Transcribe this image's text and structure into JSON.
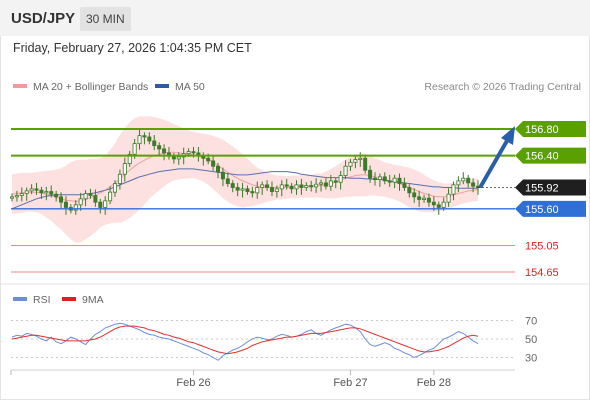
{
  "header": {
    "pair": "USD/JPY",
    "timeframe": "30 MIN"
  },
  "datetime": "Friday, February 27, 2026 1:04:35 PM CET",
  "legend": {
    "bollinger_label": "MA 20 + Bollinger Bands",
    "ma50_label": "MA 50",
    "rsi_label": "RSI",
    "rsi_ma_label": "9MA",
    "copyright": "Research © 2026 Trading Central"
  },
  "colors": {
    "green_level": "#5aa000",
    "blue_level": "#2f6fd6",
    "red_level": "#e02020",
    "last_price": "#1f1f1f",
    "candle": "#3d7a2a",
    "ma20": "#f0a0a0",
    "band": "#fde0e0",
    "ma50": "#5a6fae",
    "rsi": "#6b8fdd",
    "rsi_ma": "#e03030",
    "arrow": "#2a5ea8"
  },
  "chart_data": [
    {
      "type": "candlestick",
      "levels": [
        {
          "value": 156.8,
          "label": "156.80",
          "style": "green"
        },
        {
          "value": 156.4,
          "label": "156.40",
          "style": "green"
        },
        {
          "value": 155.92,
          "label": "155.92",
          "style": "last"
        },
        {
          "value": 155.6,
          "label": "155.60",
          "style": "blue"
        },
        {
          "value": 155.05,
          "label": "155.05",
          "style": "red"
        },
        {
          "value": 154.65,
          "label": "154.65",
          "style": "red"
        }
      ],
      "ylim": [
        154.5,
        157.2
      ],
      "x_ticks": [
        "Feb 26",
        "Feb 27",
        "Feb 28"
      ],
      "x_tick_pos": [
        37,
        69,
        86
      ],
      "n_bars": 96,
      "closes": [
        155.78,
        155.8,
        155.83,
        155.87,
        155.9,
        155.88,
        155.84,
        155.86,
        155.82,
        155.78,
        155.7,
        155.62,
        155.58,
        155.66,
        155.75,
        155.83,
        155.8,
        155.7,
        155.62,
        155.72,
        155.85,
        155.98,
        156.12,
        156.28,
        156.42,
        156.58,
        156.7,
        156.68,
        156.62,
        156.55,
        156.5,
        156.44,
        156.39,
        156.35,
        156.38,
        156.43,
        156.46,
        156.44,
        156.4,
        156.36,
        156.32,
        156.24,
        156.15,
        156.05,
        155.98,
        155.92,
        155.88,
        155.9,
        155.86,
        155.84,
        155.92,
        155.96,
        155.92,
        155.86,
        155.9,
        155.96,
        155.94,
        155.9,
        155.96,
        155.92,
        155.95,
        155.93,
        155.97,
        155.99,
        155.94,
        156.02,
        156.0,
        156.1,
        156.24,
        156.3,
        156.34,
        156.36,
        156.18,
        156.06,
        156.04,
        156.08,
        156.02,
        156.0,
        156.06,
        155.98,
        155.92,
        155.84,
        155.78,
        155.74,
        155.76,
        155.7,
        155.66,
        155.62,
        155.7,
        155.82,
        155.96,
        156.02,
        156.06,
        155.99,
        155.94,
        155.92
      ],
      "ma20": [
        155.82,
        155.83,
        155.84,
        155.85,
        155.85,
        155.85,
        155.84,
        155.82,
        155.8,
        155.77,
        155.75,
        155.73,
        155.72,
        155.71,
        155.72,
        155.74,
        155.77,
        155.8,
        155.84,
        155.88,
        155.93,
        155.99,
        156.05,
        156.12,
        156.18,
        156.24,
        156.29,
        156.33,
        156.37,
        156.4,
        156.42,
        156.44,
        156.45,
        156.45,
        156.44,
        156.43,
        156.42,
        156.41,
        156.39,
        156.37,
        156.34,
        156.3,
        156.25,
        156.2,
        156.15,
        156.1,
        156.06,
        156.02,
        155.99,
        155.96,
        155.94,
        155.93,
        155.93,
        155.92,
        155.92,
        155.92,
        155.92,
        155.93,
        155.93,
        155.94,
        155.94,
        155.94,
        155.95,
        155.95,
        155.96,
        155.98,
        156.0,
        156.03,
        156.06,
        156.08,
        156.1,
        156.11,
        156.11,
        156.1,
        156.08,
        156.06,
        156.04,
        156.02,
        156.0,
        155.98,
        155.95,
        155.92,
        155.89,
        155.86,
        155.83,
        155.81,
        155.79,
        155.78,
        155.78,
        155.79,
        155.81,
        155.83,
        155.85,
        155.87,
        155.88,
        155.89
      ],
      "ma50": [
        155.6,
        155.63,
        155.66,
        155.69,
        155.72,
        155.75,
        155.77,
        155.79,
        155.8,
        155.81,
        155.81,
        155.81,
        155.81,
        155.81,
        155.81,
        155.82,
        155.83,
        155.84,
        155.86,
        155.88,
        155.9,
        155.93,
        155.96,
        155.99,
        156.02,
        156.05,
        156.08,
        156.1,
        156.12,
        156.14,
        156.16,
        156.17,
        156.18,
        156.19,
        156.2,
        156.2,
        156.2,
        156.2,
        156.19,
        156.18,
        156.17,
        156.16,
        156.15,
        156.14,
        156.13,
        156.12,
        156.11,
        156.11,
        156.11,
        156.12,
        156.13,
        156.14,
        156.15,
        156.16,
        156.16,
        156.16,
        156.16,
        156.15,
        156.14,
        156.12,
        156.11,
        156.1,
        156.09,
        156.08,
        156.07,
        156.07,
        156.07,
        156.07,
        156.07,
        156.06,
        156.06,
        156.06,
        156.05,
        156.05,
        156.04,
        156.04,
        156.03,
        156.02,
        156.01,
        156.0,
        155.99,
        155.98,
        155.97,
        155.96,
        155.95,
        155.94,
        155.93,
        155.93,
        155.92,
        155.92,
        155.92,
        155.91,
        155.91,
        155.91,
        155.91,
        155.91
      ],
      "band_width": [
        0.3,
        0.3,
        0.3,
        0.29,
        0.29,
        0.3,
        0.32,
        0.35,
        0.38,
        0.42,
        0.46,
        0.52,
        0.58,
        0.62,
        0.62,
        0.6,
        0.58,
        0.55,
        0.52,
        0.52,
        0.55,
        0.6,
        0.66,
        0.7,
        0.72,
        0.72,
        0.7,
        0.66,
        0.62,
        0.58,
        0.54,
        0.5,
        0.46,
        0.42,
        0.4,
        0.38,
        0.36,
        0.35,
        0.35,
        0.36,
        0.38,
        0.4,
        0.42,
        0.44,
        0.44,
        0.44,
        0.42,
        0.4,
        0.36,
        0.32,
        0.28,
        0.25,
        0.22,
        0.2,
        0.18,
        0.18,
        0.17,
        0.17,
        0.17,
        0.17,
        0.17,
        0.17,
        0.18,
        0.18,
        0.2,
        0.22,
        0.24,
        0.26,
        0.28,
        0.3,
        0.31,
        0.32,
        0.32,
        0.3,
        0.28,
        0.27,
        0.26,
        0.26,
        0.26,
        0.27,
        0.28,
        0.3,
        0.3,
        0.3,
        0.28,
        0.26,
        0.24,
        0.22,
        0.2,
        0.19,
        0.18,
        0.17,
        0.17,
        0.17,
        0.17,
        0.17
      ]
    },
    {
      "type": "line",
      "title": "RSI",
      "ylim": [
        20,
        80
      ],
      "y_ticks": [
        70,
        50,
        30
      ],
      "series": [
        {
          "name": "RSI",
          "values": [
            52,
            54,
            53,
            56,
            55,
            53,
            50,
            48,
            52,
            47,
            45,
            48,
            52,
            50,
            47,
            44,
            50,
            55,
            58,
            62,
            64,
            66,
            67,
            66,
            64,
            62,
            60,
            57,
            55,
            54,
            52,
            51,
            50,
            48,
            46,
            44,
            42,
            40,
            38,
            35,
            33,
            30,
            27,
            32,
            35,
            38,
            40,
            43,
            47,
            50,
            52,
            51,
            49,
            50,
            53,
            55,
            54,
            52,
            53,
            55,
            58,
            60,
            56,
            54,
            57,
            60,
            62,
            64,
            66,
            65,
            62,
            58,
            50,
            44,
            42,
            44,
            46,
            44,
            40,
            38,
            35,
            33,
            30,
            32,
            35,
            38,
            40,
            45,
            50,
            52,
            55,
            58,
            56,
            52,
            48,
            45
          ]
        },
        {
          "name": "9MA",
          "values": [
            50,
            51,
            52,
            53,
            54,
            54,
            53,
            52,
            51,
            50,
            49,
            48,
            48,
            48,
            48,
            48,
            49,
            50,
            52,
            55,
            58,
            61,
            63,
            64,
            64,
            64,
            63,
            62,
            60,
            59,
            57,
            55,
            54,
            52,
            51,
            49,
            47,
            46,
            44,
            42,
            40,
            38,
            36,
            35,
            34,
            35,
            36,
            38,
            40,
            43,
            45,
            47,
            48,
            49,
            50,
            51,
            52,
            52,
            53,
            54,
            55,
            56,
            56,
            56,
            57,
            58,
            59,
            60,
            61,
            62,
            62,
            61,
            59,
            57,
            55,
            53,
            51,
            49,
            47,
            45,
            43,
            41,
            39,
            37,
            36,
            36,
            37,
            38,
            40,
            42,
            45,
            48,
            51,
            53,
            54,
            53
          ]
        }
      ]
    }
  ]
}
